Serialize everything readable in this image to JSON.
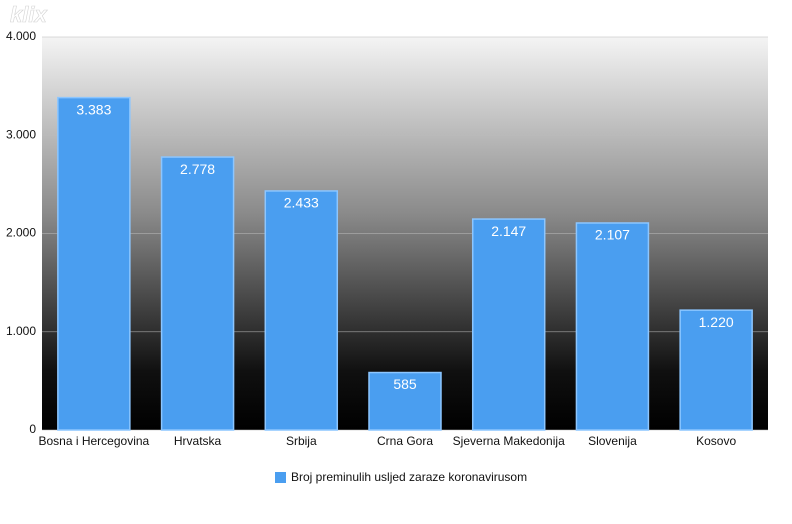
{
  "chart_data": {
    "type": "bar",
    "watermark": "klix",
    "categories": [
      "Bosna i Hercegovina",
      "Hrvatska",
      "Srbija",
      "Crna Gora",
      "Sjeverna Makedonija",
      "Slovenija",
      "Kosovo"
    ],
    "series": [
      {
        "name": "Broj preminulih usljed zaraze koronavirusom",
        "color": "#4a9ef0",
        "values": [
          3383,
          2778,
          2433,
          585,
          2147,
          2107,
          1220
        ],
        "value_labels": [
          "3.383",
          "2.778",
          "2.433",
          "585",
          "2.147",
          "2.107",
          "1.220"
        ]
      }
    ],
    "ylim": [
      0,
      4000
    ],
    "yticks": [
      0,
      {
        "value": 1000,
        "label": "1.000"
      },
      {
        "value": 2000,
        "label": "2.000"
      },
      {
        "value": 3000,
        "label": "3.000"
      },
      {
        "value": 4000,
        "label": "4.000"
      }
    ],
    "grid": true,
    "legend": "bottom"
  }
}
